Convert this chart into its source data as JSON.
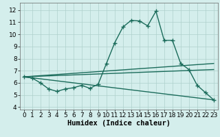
{
  "x": [
    0,
    1,
    2,
    3,
    4,
    5,
    6,
    7,
    8,
    9,
    10,
    11,
    12,
    13,
    14,
    15,
    16,
    17,
    18,
    19,
    20,
    21,
    22,
    23
  ],
  "line1": [
    6.5,
    6.4,
    6.0,
    5.5,
    5.3,
    5.5,
    5.6,
    5.8,
    5.55,
    5.9,
    7.6,
    9.3,
    10.6,
    11.15,
    11.1,
    10.7,
    11.9,
    9.5,
    9.5,
    7.6,
    7.1,
    5.8,
    5.2,
    4.6
  ],
  "line2": [
    [
      0,
      6.5
    ],
    [
      23,
      4.6
    ]
  ],
  "line3": [
    [
      0,
      6.5
    ],
    [
      23,
      7.6
    ]
  ],
  "line4": [
    [
      0,
      6.5
    ],
    [
      23,
      7.1
    ]
  ],
  "line_color": "#1a6b5a",
  "bg_color": "#d4eeec",
  "grid_color": "#aed0cc",
  "xlabel": "Humidex (Indice chaleur)",
  "xlim": [
    -0.5,
    23.5
  ],
  "ylim": [
    3.8,
    12.6
  ],
  "yticks": [
    4,
    5,
    6,
    7,
    8,
    9,
    10,
    11,
    12
  ],
  "xticks": [
    0,
    1,
    2,
    3,
    4,
    5,
    6,
    7,
    8,
    9,
    10,
    11,
    12,
    13,
    14,
    15,
    16,
    17,
    18,
    19,
    20,
    21,
    22,
    23
  ],
  "marker": "+",
  "markersize": 4,
  "linewidth": 1.0,
  "xlabel_fontsize": 7.5,
  "tick_fontsize": 6.5
}
